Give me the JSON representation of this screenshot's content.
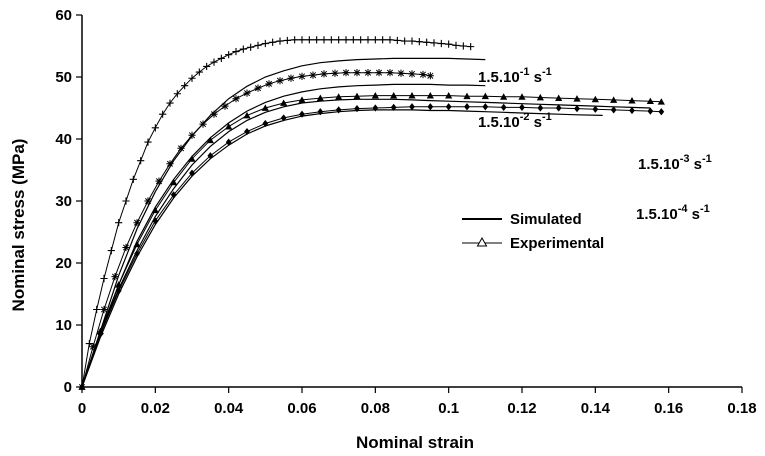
{
  "chart_data": {
    "type": "line",
    "xlabel": "Nominal strain",
    "ylabel": "Nominal stress (MPa)",
    "xlim": [
      0,
      0.18
    ],
    "ylim": [
      0,
      60
    ],
    "xticks": [
      "0",
      "0.02",
      "0.04",
      "0.06",
      "0.08",
      "0.1",
      "0.12",
      "0.14",
      "0.16",
      "0.18"
    ],
    "yticks": [
      "0",
      "10",
      "20",
      "30",
      "40",
      "50",
      "60"
    ],
    "legend": {
      "position": "center-right",
      "simulated": "Simulated",
      "experimental": "Experimental"
    },
    "rate_labels": [
      {
        "base": "1.5.10",
        "exp": "-1",
        "unit": " s",
        "unit_exp": "-1"
      },
      {
        "base": "1.5.10",
        "exp": "-2",
        "unit": " s",
        "unit_exp": "-1"
      },
      {
        "base": "1.5.10",
        "exp": "-3",
        "unit": " s",
        "unit_exp": "-1"
      },
      {
        "base": "1.5.10",
        "exp": "-4",
        "unit": " s",
        "unit_exp": "-1"
      }
    ],
    "series": [
      {
        "marker": "plus",
        "experimental": {
          "x": [
            0,
            0.002,
            0.004,
            0.006,
            0.008,
            0.01,
            0.012,
            0.014,
            0.016,
            0.018,
            0.02,
            0.022,
            0.024,
            0.026,
            0.028,
            0.03,
            0.032,
            0.034,
            0.036,
            0.038,
            0.04,
            0.042,
            0.044,
            0.046,
            0.048,
            0.05,
            0.052,
            0.054,
            0.056,
            0.058,
            0.06,
            0.062,
            0.064,
            0.066,
            0.068,
            0.07,
            0.072,
            0.074,
            0.076,
            0.078,
            0.08,
            0.082,
            0.084,
            0.086,
            0.088,
            0.09,
            0.092,
            0.094,
            0.096,
            0.098,
            0.1,
            0.102,
            0.104,
            0.106
          ],
          "y": [
            0,
            7,
            12.5,
            17.5,
            22,
            26.5,
            30,
            33.5,
            36.5,
            39.5,
            41.8,
            44,
            45.8,
            47.3,
            48.6,
            49.8,
            50.8,
            51.7,
            52.4,
            53,
            53.6,
            54.1,
            54.5,
            54.8,
            55.1,
            55.4,
            55.6,
            55.8,
            55.9,
            56,
            56,
            56,
            56,
            56,
            56,
            56,
            56,
            56,
            56,
            56,
            56,
            56,
            56,
            55.9,
            55.8,
            55.8,
            55.7,
            55.6,
            55.5,
            55.4,
            55.3,
            55.1,
            55,
            54.9
          ]
        },
        "simulated": {
          "x": [
            0,
            0.005,
            0.01,
            0.015,
            0.02,
            0.025,
            0.03,
            0.035,
            0.04,
            0.045,
            0.05,
            0.055,
            0.06,
            0.065,
            0.07,
            0.075,
            0.08,
            0.085,
            0.09,
            0.095,
            0.1,
            0.105,
            0.11
          ],
          "y": [
            0,
            9,
            18,
            25.5,
            31.5,
            36.5,
            40.5,
            43.8,
            46.5,
            48.5,
            50,
            51,
            51.8,
            52.3,
            52.6,
            52.8,
            52.9,
            53,
            53,
            53,
            53,
            52.9,
            52.8
          ]
        }
      },
      {
        "marker": "star",
        "experimental": {
          "x": [
            0,
            0.003,
            0.006,
            0.009,
            0.012,
            0.015,
            0.018,
            0.021,
            0.024,
            0.027,
            0.03,
            0.033,
            0.036,
            0.039,
            0.042,
            0.045,
            0.048,
            0.051,
            0.054,
            0.057,
            0.06,
            0.063,
            0.066,
            0.069,
            0.072,
            0.075,
            0.078,
            0.081,
            0.084,
            0.087,
            0.09,
            0.093,
            0.095
          ],
          "y": [
            0,
            6.5,
            12.5,
            17.8,
            22.5,
            26.5,
            30,
            33.2,
            36,
            38.5,
            40.6,
            42.4,
            44,
            45.3,
            46.5,
            47.4,
            48.2,
            48.9,
            49.4,
            49.8,
            50.1,
            50.3,
            50.5,
            50.6,
            50.7,
            50.7,
            50.7,
            50.7,
            50.7,
            50.6,
            50.5,
            50.4,
            50.2
          ]
        },
        "simulated": {
          "x": [
            0,
            0.005,
            0.01,
            0.015,
            0.02,
            0.025,
            0.03,
            0.035,
            0.04,
            0.045,
            0.05,
            0.055,
            0.06,
            0.065,
            0.07,
            0.075,
            0.08,
            0.085,
            0.09,
            0.095,
            0.1,
            0.105,
            0.11
          ],
          "y": [
            0,
            8.5,
            16.5,
            23.5,
            29,
            33.5,
            37.2,
            40.2,
            42.6,
            44.5,
            45.9,
            46.9,
            47.6,
            48.1,
            48.4,
            48.6,
            48.7,
            48.8,
            48.8,
            48.8,
            48.7,
            48.7,
            48.6
          ]
        }
      },
      {
        "marker": "triangle",
        "experimental": {
          "x": [
            0,
            0.005,
            0.01,
            0.015,
            0.02,
            0.025,
            0.03,
            0.035,
            0.04,
            0.045,
            0.05,
            0.055,
            0.06,
            0.065,
            0.07,
            0.075,
            0.08,
            0.085,
            0.09,
            0.095,
            0.1,
            0.105,
            0.11,
            0.115,
            0.12,
            0.125,
            0.13,
            0.135,
            0.14,
            0.145,
            0.15,
            0.155,
            0.158
          ],
          "y": [
            0,
            9,
            16.5,
            23,
            28.5,
            33,
            36.8,
            39.8,
            42,
            43.8,
            45,
            45.8,
            46.3,
            46.6,
            46.8,
            46.9,
            47,
            47,
            47,
            47,
            47,
            46.9,
            46.9,
            46.8,
            46.8,
            46.7,
            46.6,
            46.5,
            46.4,
            46.3,
            46.2,
            46.1,
            46
          ]
        },
        "simulated": {
          "x": [
            0,
            0.005,
            0.01,
            0.015,
            0.02,
            0.025,
            0.03,
            0.035,
            0.04,
            0.045,
            0.05,
            0.055,
            0.06,
            0.065,
            0.07,
            0.075,
            0.08,
            0.085,
            0.09,
            0.095,
            0.1,
            0.105,
            0.11,
            0.115,
            0.12,
            0.125,
            0.13,
            0.135,
            0.14,
            0.145,
            0.15,
            0.155
          ],
          "y": [
            0,
            8.5,
            15.8,
            22,
            27.5,
            32,
            35.8,
            38.8,
            41.2,
            43,
            44.3,
            45.2,
            45.8,
            46.1,
            46.3,
            46.4,
            46.4,
            46.4,
            46.3,
            46.2,
            46.1,
            46,
            45.9,
            45.8,
            45.7,
            45.6,
            45.5,
            45.4,
            45.3,
            45.2,
            45.1,
            45
          ]
        }
      },
      {
        "marker": "diamond",
        "experimental": {
          "x": [
            0,
            0.005,
            0.01,
            0.015,
            0.02,
            0.025,
            0.03,
            0.035,
            0.04,
            0.045,
            0.05,
            0.055,
            0.06,
            0.065,
            0.07,
            0.075,
            0.08,
            0.085,
            0.09,
            0.095,
            0.1,
            0.105,
            0.11,
            0.115,
            0.12,
            0.125,
            0.13,
            0.135,
            0.14,
            0.145,
            0.15,
            0.155,
            0.158
          ],
          "y": [
            0,
            8.5,
            15.5,
            21.5,
            26.8,
            31,
            34.5,
            37.3,
            39.5,
            41.2,
            42.5,
            43.4,
            44,
            44.4,
            44.7,
            44.9,
            45,
            45.1,
            45.2,
            45.2,
            45.2,
            45.2,
            45.2,
            45.1,
            45.1,
            45,
            45,
            44.9,
            44.8,
            44.7,
            44.6,
            44.5,
            44.4
          ]
        },
        "simulated": {
          "x": [
            0,
            0.005,
            0.01,
            0.015,
            0.02,
            0.025,
            0.03,
            0.035,
            0.04,
            0.045,
            0.05,
            0.055,
            0.06,
            0.065,
            0.07,
            0.075,
            0.08,
            0.085,
            0.09,
            0.095,
            0.1,
            0.105,
            0.11,
            0.115,
            0.12,
            0.125,
            0.13,
            0.135,
            0.142
          ],
          "y": [
            0,
            8,
            15,
            21,
            26.2,
            30.5,
            34,
            36.8,
            39,
            40.8,
            42.1,
            43,
            43.7,
            44.1,
            44.4,
            44.6,
            44.7,
            44.7,
            44.7,
            44.6,
            44.6,
            44.5,
            44.4,
            44.3,
            44.2,
            44.1,
            44,
            43.9,
            43.8
          ]
        }
      }
    ]
  }
}
